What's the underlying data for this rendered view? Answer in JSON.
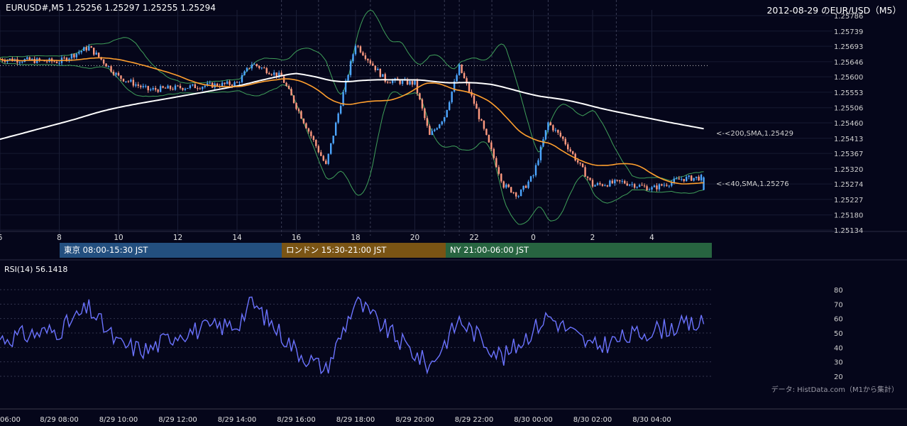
{
  "header": {
    "ohlc": "EURUSD#,M5 1.25256 1.25297 1.25255 1.25294",
    "title": "2012-08-29 のEUR/USD（M5）"
  },
  "indicators": {
    "sma200_label": "<-<200,SMA,1.25429",
    "sma40_label": "<-<40,SMA,1.25276",
    "rsi_label": "RSI(14) 56.1418",
    "source": "データ: HistData.com（M1から集計）"
  },
  "sessions": [
    {
      "label": "東京 08:00-15:30 JST",
      "color": "#234f7f"
    },
    {
      "label": "ロンドン 15:30-21:00 JST",
      "color": "#7a5414"
    },
    {
      "label": "NY 21:00-06:00 JST",
      "color": "#276440"
    }
  ],
  "colors": {
    "background": "#05061a",
    "candle_up": "#4da6ff",
    "candle_down": "#ff9a80",
    "sma200": "#ffffff",
    "sma40": "#ff9f2e",
    "bollinger": "#3f9f5a",
    "rsi": "#6b73ff"
  },
  "chart_data": [
    {
      "type": "candlestick",
      "title": "2012-08-29 のEUR/USD（M5）",
      "price_ticks": [
        "1.25786",
        "1.25739",
        "1.25693",
        "1.25646",
        "1.25600",
        "1.25553",
        "1.25506",
        "1.25460",
        "1.25413",
        "1.25367",
        "1.25320",
        "1.25274",
        "1.25227",
        "1.25180",
        "1.25134"
      ],
      "ylim": [
        1.25134,
        1.25786
      ],
      "hour_ticks": [
        "6",
        "8",
        "10",
        "12",
        "14",
        "16",
        "18",
        "20",
        "22",
        "0",
        "2",
        "4"
      ],
      "date_ticks": [
        "06:00",
        "8/29 08:00",
        "8/29 10:00",
        "8/29 12:00",
        "8/29 14:00",
        "8/29 16:00",
        "8/29 18:00",
        "8/29 20:00",
        "8/29 22:00",
        "8/30 00:00",
        "8/30 02:00",
        "8/30 04:00"
      ],
      "last_bar": {
        "open": 1.25256,
        "high": 1.25297,
        "low": 1.25255,
        "close": 1.25294
      },
      "reference_level": 1.25634,
      "series": [
        {
          "name": "SMA200",
          "last": 1.25429
        },
        {
          "name": "SMA40",
          "last": 1.25276
        },
        {
          "name": "Bollinger Bands"
        }
      ],
      "key_points": [
        {
          "time": "06:00",
          "price": 1.25654
        },
        {
          "time": "08:00",
          "price": 1.25646
        },
        {
          "time": "09:00",
          "price": 1.2569
        },
        {
          "time": "10:00",
          "price": 1.256
        },
        {
          "time": "11:00",
          "price": 1.2556
        },
        {
          "time": "14:00",
          "price": 1.2558
        },
        {
          "time": "14:30",
          "price": 1.2564
        },
        {
          "time": "15:30",
          "price": 1.256
        },
        {
          "time": "16:00",
          "price": 1.2551
        },
        {
          "time": "17:00",
          "price": 1.2533
        },
        {
          "time": "17:30",
          "price": 1.2552
        },
        {
          "time": "18:00",
          "price": 1.257
        },
        {
          "time": "19:00",
          "price": 1.2559
        },
        {
          "time": "20:00",
          "price": 1.2558
        },
        {
          "time": "20:30",
          "price": 1.2542
        },
        {
          "time": "21:00",
          "price": 1.2548
        },
        {
          "time": "21:30",
          "price": 1.2563
        },
        {
          "time": "22:00",
          "price": 1.2552
        },
        {
          "time": "23:00",
          "price": 1.2527
        },
        {
          "time": "23:30",
          "price": 1.2524
        },
        {
          "time": "00:00",
          "price": 1.253
        },
        {
          "time": "00:30",
          "price": 1.2546
        },
        {
          "time": "01:00",
          "price": 1.2541
        },
        {
          "time": "02:00",
          "price": 1.2527
        },
        {
          "time": "03:00",
          "price": 1.2528
        },
        {
          "time": "04:00",
          "price": 1.2526
        },
        {
          "time": "05:00",
          "price": 1.2529
        },
        {
          "time": "05:45",
          "price": 1.25294
        }
      ]
    },
    {
      "type": "line",
      "title": "RSI(14) 56.1418",
      "yticks": [
        "80",
        "70",
        "60",
        "50",
        "40",
        "30",
        "20"
      ],
      "ylim": [
        20,
        80
      ],
      "series": [
        {
          "name": "RSI(14)",
          "last": 56.1418,
          "key_points": [
            {
              "time": "06:00",
              "value": 46
            },
            {
              "time": "08:00",
              "value": 52
            },
            {
              "time": "09:00",
              "value": 67
            },
            {
              "time": "10:00",
              "value": 42
            },
            {
              "time": "11:00",
              "value": 38
            },
            {
              "time": "12:00",
              "value": 50
            },
            {
              "time": "14:00",
              "value": 56
            },
            {
              "time": "14:30",
              "value": 71
            },
            {
              "time": "16:00",
              "value": 38
            },
            {
              "time": "17:00",
              "value": 24
            },
            {
              "time": "18:00",
              "value": 72
            },
            {
              "time": "19:00",
              "value": 53
            },
            {
              "time": "20:30",
              "value": 27
            },
            {
              "time": "21:30",
              "value": 59
            },
            {
              "time": "23:00",
              "value": 33
            },
            {
              "time": "00:30",
              "value": 62
            },
            {
              "time": "02:00",
              "value": 40
            },
            {
              "time": "04:00",
              "value": 52
            },
            {
              "time": "05:00",
              "value": 55
            },
            {
              "time": "05:45",
              "value": 56.1418
            }
          ]
        }
      ]
    }
  ]
}
